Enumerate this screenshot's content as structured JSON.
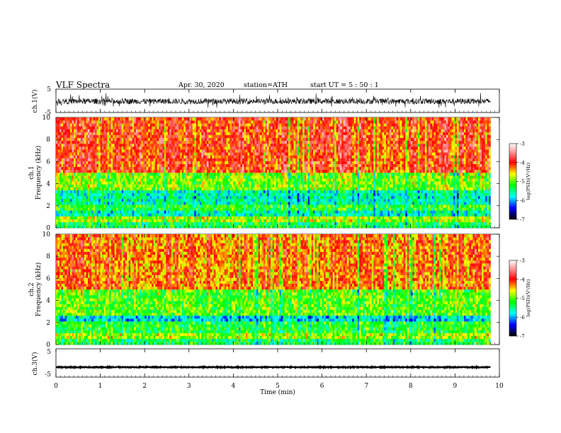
{
  "header": {
    "title": "VLF  Spectra",
    "date": "Apr. 30, 2020",
    "station": "station=ATH",
    "start_ut": "start  UT  =    5  : 50 : 1"
  },
  "chart_data": [
    {
      "type": "line",
      "panel": "ch1-waveform",
      "ylabel": "ch.1(V)",
      "ylim": [
        -5,
        5
      ],
      "yticks": [
        "5",
        "-5"
      ],
      "xlim": [
        0,
        10
      ],
      "data_extent_min": [
        0,
        9.8
      ],
      "description_values": {
        "baseline_v": -0.2,
        "typical_amplitude_v": 1.2,
        "spike_amplitude_v": 2.5
      }
    },
    {
      "type": "heatmap",
      "panel": "ch1-spectrogram",
      "ylabel": "ch.1\nFrequency  (kHz)",
      "ylim": [
        0,
        10
      ],
      "yticks": [
        "0",
        "2",
        "4",
        "6",
        "8",
        "10"
      ],
      "xlim": [
        0,
        10
      ],
      "data_extent_min": [
        0,
        9.8
      ],
      "colorbar": {
        "label": "log(PSD)(V²/Hz)",
        "range": [
          -7,
          -3
        ],
        "ticks": [
          "-3",
          "-4",
          "-5",
          "-6",
          "-7"
        ]
      },
      "bands": [
        {
          "f_range_khz": [
            0,
            0.5
          ],
          "log_psd": -5.3
        },
        {
          "f_range_khz": [
            0.5,
            1.0
          ],
          "log_psd": -4.8
        },
        {
          "f_range_khz": [
            1.0,
            1.6
          ],
          "log_psd": -5.6
        },
        {
          "f_range_khz": [
            1.6,
            2.2
          ],
          "log_psd": -5.2
        },
        {
          "f_range_khz": [
            2.2,
            3.5
          ],
          "log_psd": -5.6
        },
        {
          "f_range_khz": [
            3.5,
            5.0
          ],
          "log_psd": -4.9
        },
        {
          "f_range_khz": [
            5.0,
            10.0
          ],
          "log_psd": -4.0
        }
      ]
    },
    {
      "type": "heatmap",
      "panel": "ch2-spectrogram",
      "ylabel": "ch.2\nFrequency  (kHz)",
      "ylim": [
        0,
        10
      ],
      "yticks": [
        "0",
        "2",
        "4",
        "6",
        "8",
        "10"
      ],
      "xlim": [
        0,
        10
      ],
      "data_extent_min": [
        0,
        9.8
      ],
      "colorbar": {
        "label": "log(PSD)(V²/Hz)",
        "range": [
          -7,
          -3
        ],
        "ticks": [
          "-3",
          "-4",
          "-5",
          "-6",
          "-7"
        ]
      },
      "bands": [
        {
          "f_range_khz": [
            0,
            0.5
          ],
          "log_psd": -5.3
        },
        {
          "f_range_khz": [
            0.5,
            1.0
          ],
          "log_psd": -4.8
        },
        {
          "f_range_khz": [
            1.0,
            2.0
          ],
          "log_psd": -5.2
        },
        {
          "f_range_khz": [
            2.0,
            2.6
          ],
          "log_psd": -5.8
        },
        {
          "f_range_khz": [
            2.6,
            5.0
          ],
          "log_psd": -5.0
        },
        {
          "f_range_khz": [
            5.0,
            10.0
          ],
          "log_psd": -4.2
        }
      ]
    },
    {
      "type": "line",
      "panel": "ch3-waveform",
      "ylabel": "ch.3(V)",
      "ylim": [
        -5,
        5
      ],
      "yticks": [
        "5",
        "-5"
      ],
      "xlim": [
        0,
        10
      ],
      "data_extent_min": [
        0,
        9.8
      ],
      "description_values": {
        "baseline_v": -1.5,
        "typical_amplitude_v": 0.15
      }
    }
  ],
  "xaxis": {
    "label": "Time  (min)",
    "ticks": [
      "0",
      "1",
      "2",
      "3",
      "4",
      "5",
      "6",
      "7",
      "8",
      "9",
      "10"
    ]
  },
  "colors": {
    "colormap": [
      "#ffffff",
      "#ff0000",
      "#ffff00",
      "#00ff00",
      "#00ffff",
      "#0000ff",
      "#000000"
    ],
    "waveform": "#000000"
  }
}
